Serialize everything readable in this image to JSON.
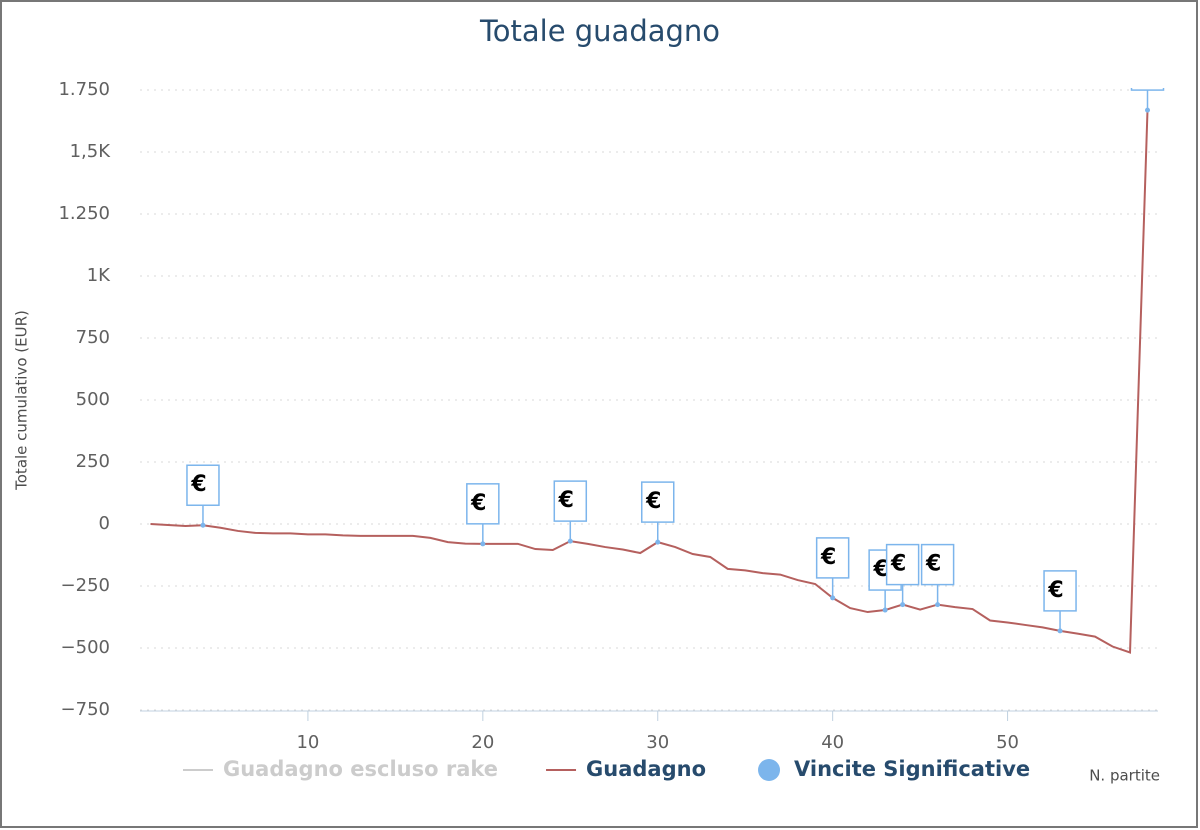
{
  "chart_data": {
    "type": "line",
    "title": "Totale guadagno",
    "y_axis_title": "Totale cumulativo (EUR)",
    "x_axis_title": "N. partite",
    "x": [
      1,
      2,
      3,
      4,
      5,
      6,
      7,
      8,
      9,
      10,
      11,
      12,
      13,
      14,
      15,
      16,
      17,
      18,
      19,
      20,
      21,
      22,
      23,
      24,
      25,
      26,
      27,
      28,
      29,
      30,
      31,
      32,
      33,
      34,
      35,
      36,
      37,
      38,
      39,
      40,
      41,
      42,
      43,
      44,
      45,
      46,
      47,
      48,
      49,
      50,
      51,
      52,
      53,
      54,
      55,
      56,
      57,
      58
    ],
    "series": [
      {
        "name": "Guadagno escluso rake",
        "color": "#cccccc",
        "visible": false
      },
      {
        "name": "Guadagno",
        "color": "#b5605e",
        "values": [
          0,
          -4,
          -8,
          -5,
          -15,
          -28,
          -36,
          -38,
          -38,
          -42,
          -42,
          -46,
          -48,
          -48,
          -48,
          -48,
          -56,
          -73,
          -79,
          -80,
          -80,
          -80,
          -101,
          -105,
          -69,
          -80,
          -93,
          -103,
          -117,
          -73,
          -93,
          -121,
          -133,
          -181,
          -187,
          -198,
          -204,
          -226,
          -242,
          -298,
          -339,
          -355,
          -347,
          -325,
          -345,
          -325,
          -335,
          -343,
          -389,
          -397,
          -407,
          -417,
          -431,
          -442,
          -454,
          -494,
          -518,
          1669
        ]
      }
    ],
    "flags": {
      "name": "Vincite Significative",
      "color": "#7cb5ec",
      "title": "€",
      "x": [
        4,
        20,
        25,
        30,
        40,
        43,
        44,
        46,
        53,
        58
      ]
    },
    "xlim": [
      0.4,
      58.6
    ],
    "xticks": [
      10,
      20,
      30,
      40,
      50
    ],
    "ylim": [
      -750,
      1750
    ],
    "yticks": [
      {
        "value": -750,
        "label": "−750"
      },
      {
        "value": -500,
        "label": "−500"
      },
      {
        "value": -250,
        "label": "−250"
      },
      0,
      250,
      500,
      750,
      {
        "value": 1000,
        "label": "1K"
      },
      {
        "value": 1250,
        "label": "1.250"
      },
      {
        "value": 1500,
        "label": "1,5K"
      },
      {
        "value": 1750,
        "label": "1.750"
      }
    ],
    "grid": true
  }
}
